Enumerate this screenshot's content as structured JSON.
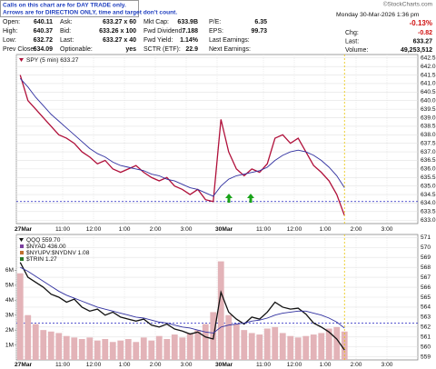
{
  "notice": [
    "Calls on this chart are for DAY TRADE only.",
    "Arrows are for DIRECTION ONLY, time and target don't count."
  ],
  "quote": {
    "rows": [
      [
        [
          "Open:",
          "640.11"
        ],
        [
          "Ask:",
          "633.27 x 60"
        ],
        [
          "Mkt Cap:",
          "633.9B"
        ],
        [
          "P/E:",
          "6.35"
        ]
      ],
      [
        [
          "High:",
          "640.37"
        ],
        [
          "Bid:",
          "633.26 x 100"
        ],
        [
          "Fwd Dividend:",
          "7.188"
        ],
        [
          "EPS:",
          "99.73"
        ]
      ],
      [
        [
          "Low:",
          "632.72"
        ],
        [
          "Last:",
          "633.27 x 40"
        ],
        [
          "Fwd Yield:",
          "1.14%"
        ],
        [
          "Last Earnings:",
          ""
        ]
      ],
      [
        [
          "Prev Close:",
          "634.09"
        ],
        [
          "Optionable:",
          "yes"
        ],
        [
          "SCTR (ETF):",
          "22.9"
        ],
        [
          "Next Earnings:",
          ""
        ]
      ]
    ],
    "date": "Monday  30-Mar-2026  1:36 pm",
    "change_pct": "-0.13%",
    "summary": [
      [
        "Chg:",
        "-0.82"
      ],
      [
        "Last:",
        "633.27"
      ],
      [
        "Volume:",
        "49,253,512"
      ]
    ],
    "copyright": "©StockCharts.com"
  },
  "chart_data": [
    {
      "type": "line",
      "categories": [
        "27Mar",
        null,
        null,
        null,
        null,
        null,
        "11:00",
        null,
        null,
        null,
        "12:00",
        null,
        null,
        null,
        "1:00",
        null,
        null,
        null,
        "2:00",
        null,
        null,
        null,
        "3:00",
        null,
        null,
        null,
        "30Mar",
        null,
        null,
        null,
        null,
        null,
        "11:00",
        null,
        null,
        null,
        "12:00",
        null,
        null,
        null,
        "1:00",
        null,
        null,
        null,
        "2:00",
        null,
        null,
        null,
        "3:00",
        null,
        null,
        null
      ],
      "series": [
        {
          "name": "SPY (5 min) 633.27",
          "color": "#b0103a",
          "values": [
            641.5,
            640.0,
            639.5,
            639.0,
            638.5,
            638.0,
            637.8,
            637.5,
            637.0,
            636.7,
            636.3,
            636.5,
            636.0,
            635.8,
            636.0,
            636.2,
            635.8,
            635.5,
            635.3,
            635.5,
            635.0,
            634.8,
            634.5,
            634.8,
            634.2,
            634.09,
            638.9,
            637.0,
            636.0,
            635.6,
            636.0,
            635.8,
            636.3,
            637.8,
            638.0,
            637.5,
            637.8,
            637.0,
            636.2,
            635.8,
            635.3,
            634.5,
            633.27,
            null,
            null,
            null,
            null,
            null,
            null,
            null,
            null,
            null
          ]
        },
        {
          "color": "#3030a0",
          "values": [
            641.3,
            640.8,
            640.2,
            639.7,
            639.2,
            638.8,
            638.4,
            638.0,
            637.6,
            637.2,
            636.9,
            636.7,
            636.4,
            636.2,
            636.1,
            636.0,
            635.9,
            635.7,
            635.6,
            635.4,
            635.3,
            635.1,
            634.9,
            634.8,
            634.6,
            634.4,
            635.0,
            635.4,
            635.6,
            635.7,
            635.8,
            635.9,
            636.1,
            636.5,
            636.8,
            637.0,
            637.1,
            637.0,
            636.8,
            636.5,
            636.1,
            635.6,
            634.9,
            null,
            null,
            null,
            null,
            null,
            null,
            null,
            null,
            null
          ]
        }
      ],
      "reference_lines": [
        {
          "value": 634.09,
          "color": "#2020c0"
        }
      ],
      "ylim": [
        632.8,
        642.7
      ],
      "yticks": [
        {
          "value": 633,
          "label": "633.0"
        },
        633.5,
        {
          "value": 634,
          "label": "634.0"
        },
        634.5,
        {
          "value": 635,
          "label": "635.0"
        },
        635.5,
        {
          "value": 636,
          "label": "636.0"
        },
        636.5,
        {
          "value": 637,
          "label": "637.0"
        },
        637.5,
        {
          "value": 638,
          "label": "638.0"
        },
        638.5,
        {
          "value": 639,
          "label": "639.0"
        },
        639.5,
        {
          "value": 640,
          "label": "640.0"
        },
        640.5,
        {
          "value": 641,
          "label": "641.0"
        },
        641.5,
        {
          "value": 642,
          "label": "642.0"
        },
        642.5
      ],
      "grid": true
    },
    {
      "type": "line",
      "categories": [
        "27Mar",
        null,
        null,
        null,
        null,
        null,
        "11:00",
        null,
        null,
        null,
        "12:00",
        null,
        null,
        null,
        "1:00",
        null,
        null,
        null,
        "2:00",
        null,
        null,
        null,
        "3:00",
        null,
        null,
        null,
        "30Mar",
        null,
        null,
        null,
        null,
        null,
        "11:00",
        null,
        null,
        null,
        "12:00",
        null,
        null,
        null,
        "1:00",
        null,
        null,
        null,
        "2:00",
        null,
        null,
        null,
        "3:00",
        null,
        null,
        null
      ],
      "series": [
        {
          "type": "bar",
          "axis": "y2",
          "color": "#e3b3b8",
          "values": [
            5800000,
            3000000,
            2400000,
            2000000,
            1900000,
            1800000,
            1600000,
            1500000,
            1400000,
            1500000,
            1300000,
            1400000,
            1200000,
            1300000,
            1400000,
            1200000,
            1500000,
            1300000,
            1600000,
            1400000,
            1700000,
            1500000,
            1800000,
            2000000,
            2400000,
            3200000,
            6600000,
            3000000,
            2400000,
            2000000,
            1800000,
            1700000,
            2100000,
            2200000,
            1800000,
            1600000,
            1500000,
            1600000,
            1700000,
            1800000,
            2100000,
            2200000,
            1900000,
            null,
            null,
            null,
            null,
            null,
            null,
            null,
            null,
            null
          ]
        },
        {
          "name": "QQQ 559.70",
          "color": "#111111",
          "values": [
            568.5,
            567.0,
            566.5,
            566.0,
            565.3,
            565.0,
            564.5,
            564.8,
            564.0,
            563.6,
            563.8,
            563.2,
            563.5,
            563.0,
            562.8,
            562.6,
            562.8,
            562.2,
            562.0,
            562.3,
            561.8,
            561.6,
            561.3,
            561.5,
            561.0,
            560.8,
            565.5,
            563.5,
            562.8,
            562.3,
            563.0,
            562.8,
            563.5,
            564.5,
            564.0,
            563.8,
            563.9,
            563.3,
            562.4,
            562.0,
            561.5,
            560.8,
            559.7,
            null,
            null,
            null,
            null,
            null,
            null,
            null,
            null,
            null
          ]
        },
        {
          "color": "#3030a0",
          "values": [
            568.0,
            567.6,
            567.1,
            566.6,
            566.1,
            565.6,
            565.2,
            564.9,
            564.6,
            564.3,
            564.0,
            563.8,
            563.6,
            563.4,
            563.2,
            563.0,
            562.9,
            562.7,
            562.5,
            562.4,
            562.2,
            562.0,
            561.9,
            561.7,
            561.5,
            561.4,
            562.0,
            562.2,
            562.3,
            562.4,
            562.6,
            562.7,
            562.9,
            563.2,
            563.4,
            563.5,
            563.6,
            563.6,
            563.4,
            563.2,
            562.9,
            562.5,
            561.9,
            null,
            null,
            null,
            null,
            null,
            null,
            null,
            null,
            null
          ]
        }
      ],
      "indicators": [
        "$NYAD 436.00",
        "$NYUPV:$NYDNV 1.08",
        "$TRIN 1.27"
      ],
      "reference_lines": [
        {
          "value": 562.4,
          "color": "#2020c0"
        }
      ],
      "ylim": [
        558.7,
        571.3
      ],
      "yticks": [
        559,
        560,
        561,
        562,
        563,
        564,
        565,
        566,
        567,
        568,
        569,
        570,
        571
      ],
      "y2lim": [
        0,
        8400000
      ],
      "y2ticks": [
        {
          "value": 1000000,
          "label": "1M"
        },
        {
          "value": 2000000,
          "label": "2M"
        },
        {
          "value": 3000000,
          "label": "3M"
        },
        {
          "value": 4000000,
          "label": "4M"
        },
        {
          "value": 5000000,
          "label": "5M"
        },
        {
          "value": 6000000,
          "label": "6M"
        }
      ],
      "grid": true
    }
  ]
}
